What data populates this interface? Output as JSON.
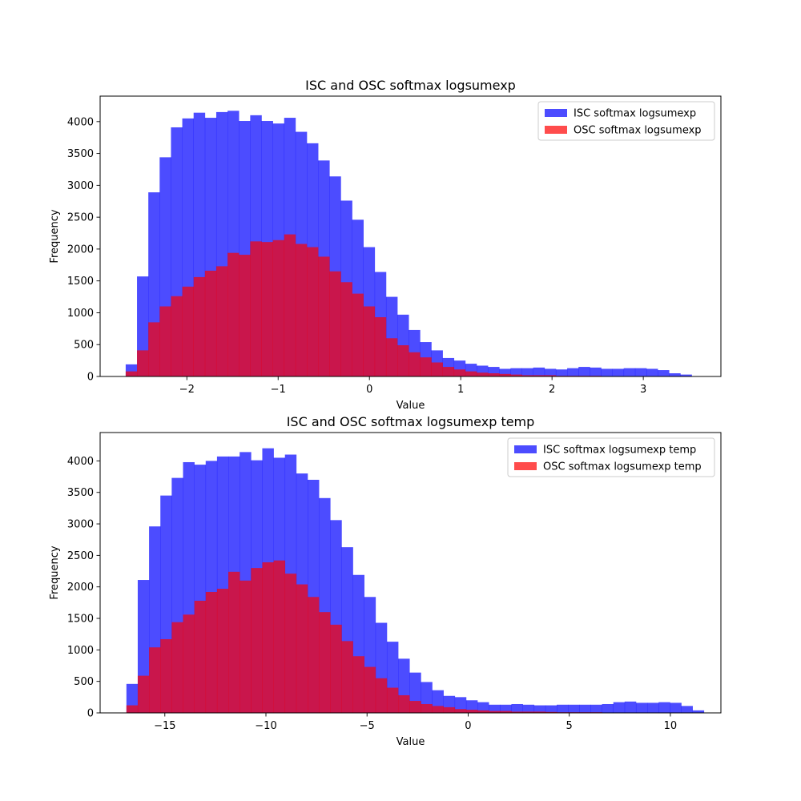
{
  "chart_data": [
    {
      "type": "bar",
      "title": "ISC and OSC softmax logsumexp",
      "xlabel": "Value",
      "ylabel": "Frequency",
      "xlim": [
        -2.95,
        3.85
      ],
      "ylim": [
        0,
        4400
      ],
      "xticks": [
        -2,
        -1,
        0,
        1,
        2,
        3
      ],
      "xtick_labels": [
        "−2",
        "−1",
        "0",
        "1",
        "2",
        "3"
      ],
      "yticks": [
        0,
        500,
        1000,
        1500,
        2000,
        2500,
        3000,
        3500,
        4000
      ],
      "legend_position": "top-right",
      "bin_start": -2.67,
      "bin_width": 0.124,
      "series": [
        {
          "name": "ISC softmax logsumexp",
          "color": "#0000ff",
          "alpha": 0.7,
          "values": [
            190,
            1570,
            2890,
            3440,
            3910,
            4050,
            4140,
            4060,
            4150,
            4170,
            4010,
            4100,
            4010,
            3970,
            4060,
            3840,
            3660,
            3390,
            3140,
            2760,
            2460,
            2030,
            1640,
            1250,
            970,
            730,
            540,
            410,
            290,
            250,
            200,
            170,
            150,
            120,
            130,
            130,
            140,
            120,
            110,
            130,
            150,
            140,
            120,
            120,
            130,
            130,
            120,
            100,
            50,
            30
          ]
        },
        {
          "name": "OSC softmax logsumexp",
          "color": "#ff0000",
          "alpha": 0.7,
          "values": [
            80,
            410,
            850,
            1100,
            1260,
            1410,
            1560,
            1660,
            1730,
            1940,
            1910,
            2120,
            2110,
            2140,
            2230,
            2080,
            2030,
            1880,
            1650,
            1480,
            1300,
            1100,
            930,
            600,
            490,
            380,
            300,
            220,
            150,
            110,
            80,
            60,
            50,
            40,
            30,
            20,
            20,
            20,
            10,
            10,
            10,
            10,
            5,
            5,
            5,
            5,
            0,
            0,
            0,
            0
          ]
        }
      ]
    },
    {
      "type": "bar",
      "title": "ISC and OSC softmax logsumexp temp",
      "xlabel": "Value",
      "ylabel": "Frequency",
      "xlim": [
        -18.2,
        12.5
      ],
      "ylim": [
        0,
        4450
      ],
      "xticks": [
        -15,
        -10,
        -5,
        0,
        5,
        10
      ],
      "xtick_labels": [
        "−15",
        "−10",
        "−5",
        "0",
        "5",
        "10"
      ],
      "yticks": [
        0,
        500,
        1000,
        1500,
        2000,
        2500,
        3000,
        3500,
        4000
      ],
      "legend_position": "top-right",
      "bin_start": -16.9,
      "bin_width": 0.56,
      "series": [
        {
          "name": "ISC softmax logsumexp temp",
          "color": "#0000ff",
          "alpha": 0.7,
          "values": [
            460,
            2110,
            2960,
            3450,
            3730,
            3980,
            3940,
            4000,
            4070,
            4070,
            4140,
            4010,
            4200,
            4050,
            4100,
            3800,
            3700,
            3410,
            3060,
            2630,
            2190,
            1840,
            1430,
            1130,
            860,
            640,
            490,
            360,
            270,
            250,
            200,
            170,
            130,
            130,
            140,
            130,
            120,
            120,
            130,
            130,
            130,
            130,
            140,
            170,
            180,
            160,
            160,
            170,
            160,
            110,
            40
          ]
        },
        {
          "name": "OSC softmax logsumexp temp",
          "color": "#ff0000",
          "alpha": 0.7,
          "values": [
            120,
            590,
            1040,
            1170,
            1440,
            1560,
            1780,
            1920,
            1970,
            2240,
            2100,
            2300,
            2390,
            2420,
            2210,
            2040,
            1840,
            1600,
            1400,
            1140,
            900,
            730,
            550,
            400,
            280,
            190,
            140,
            110,
            90,
            60,
            50,
            40,
            30,
            30,
            20,
            20,
            20,
            15,
            10,
            10,
            10,
            10,
            5,
            5,
            5,
            5,
            0,
            0,
            0,
            0,
            0
          ]
        }
      ]
    }
  ]
}
